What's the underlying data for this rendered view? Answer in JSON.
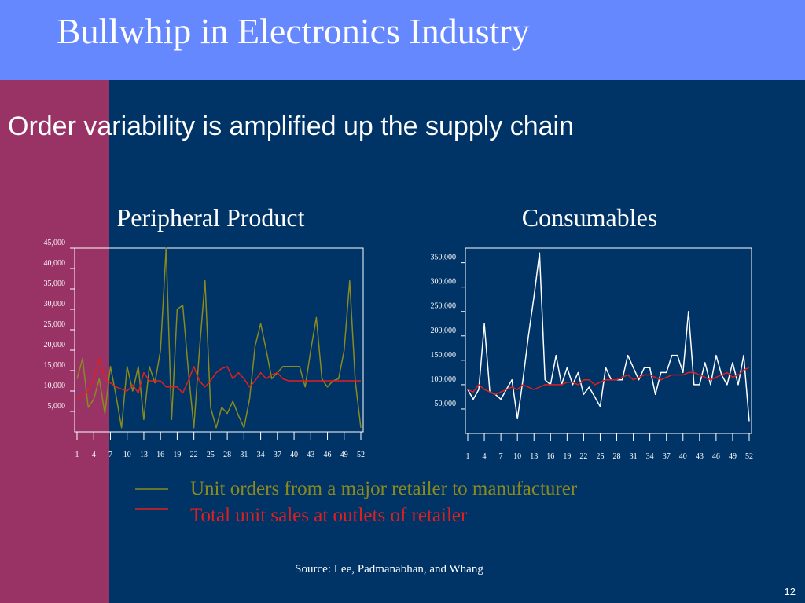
{
  "slide": {
    "title": "Bullwhip in Electronics Industry",
    "subtitle": "Order variability is amplified up the supply chain",
    "source": "Source:  Lee, Padmanabhan, and Whang",
    "page_number": "12"
  },
  "chart_data": [
    {
      "type": "line",
      "title": "Peripheral Product",
      "x": [
        1,
        2,
        3,
        4,
        5,
        6,
        7,
        8,
        9,
        10,
        11,
        12,
        13,
        14,
        15,
        16,
        17,
        18,
        19,
        20,
        21,
        22,
        23,
        24,
        25,
        26,
        27,
        28,
        29,
        30,
        31,
        32,
        33,
        34,
        35,
        36,
        37,
        38,
        39,
        40,
        41,
        42,
        43,
        44,
        45,
        46,
        47,
        48,
        49,
        50,
        51,
        52
      ],
      "xlim": [
        1,
        52
      ],
      "xticks": [
        1,
        4,
        7,
        10,
        13,
        16,
        19,
        22,
        25,
        28,
        31,
        34,
        37,
        40,
        43,
        46,
        49,
        52
      ],
      "ylim": [
        0,
        45000
      ],
      "yticks": [
        {
          "value": 5000,
          "label": "5,000"
        },
        {
          "value": 10000,
          "label": "10,000"
        },
        {
          "value": 15000,
          "label": "15,000"
        },
        {
          "value": 20000,
          "label": "20,000"
        },
        {
          "value": 25000,
          "label": "25,000"
        },
        {
          "value": 30000,
          "label": "30,000"
        },
        {
          "value": 35000,
          "label": "35,000"
        },
        {
          "value": 40000,
          "label": "40,000"
        },
        {
          "value": 45000,
          "label": "45,000"
        }
      ],
      "series": [
        {
          "name": "Unit orders from a major retailer to manufacturer",
          "color": "#8a8a1e",
          "values": [
            13000,
            18000,
            6000,
            8000,
            13000,
            4500,
            16000,
            9000,
            1000,
            16000,
            10000,
            16000,
            3000,
            16000,
            12000,
            20000,
            45000,
            3000,
            30000,
            31000,
            15000,
            1000,
            20000,
            37000,
            6000,
            1000,
            6000,
            4500,
            7500,
            4000,
            1000,
            8000,
            21000,
            26500,
            20000,
            13000,
            14500,
            16000,
            16000,
            16000,
            16000,
            11000,
            20000,
            28000,
            13000,
            11000,
            12500,
            13000,
            20000,
            37000,
            12500,
            1000
          ]
        },
        {
          "name": "Total unit sales at outlets of retailer",
          "color": "#e0201f",
          "values": [
            8000,
            9000,
            10000,
            13000,
            18000,
            13000,
            12000,
            11000,
            10500,
            10000,
            11500,
            9500,
            14500,
            12500,
            12500,
            12500,
            11000,
            11000,
            11000,
            9500,
            12500,
            16000,
            12500,
            11000,
            12500,
            14500,
            15500,
            16000,
            13000,
            14500,
            13000,
            11000,
            12500,
            14500,
            13000,
            14000,
            14500,
            13000,
            12500,
            12500,
            12500,
            12500,
            12500,
            12500,
            12500,
            12500,
            12500,
            12500,
            12500,
            12500,
            12500,
            12500
          ]
        }
      ]
    },
    {
      "type": "line",
      "title": "Consumables",
      "x": [
        1,
        2,
        3,
        4,
        5,
        6,
        7,
        8,
        9,
        10,
        11,
        12,
        13,
        14,
        15,
        16,
        17,
        18,
        19,
        20,
        21,
        22,
        23,
        24,
        25,
        26,
        27,
        28,
        29,
        30,
        31,
        32,
        33,
        34,
        35,
        36,
        37,
        38,
        39,
        40,
        41,
        42,
        43,
        44,
        45,
        46,
        47,
        48,
        49,
        50,
        51,
        52
      ],
      "xlim": [
        1,
        52
      ],
      "xticks": [
        1,
        4,
        7,
        10,
        13,
        16,
        19,
        22,
        25,
        28,
        31,
        34,
        37,
        40,
        43,
        46,
        49,
        52
      ],
      "ylim": [
        0,
        380000
      ],
      "yticks": [
        {
          "value": 50000,
          "label": "50,000"
        },
        {
          "value": 100000,
          "label": "100,000"
        },
        {
          "value": 150000,
          "label": "150,000"
        },
        {
          "value": 200000,
          "label": "200,000"
        },
        {
          "value": 250000,
          "label": "250,000"
        },
        {
          "value": 300000,
          "label": "300,000"
        },
        {
          "value": 350000,
          "label": "350,000"
        }
      ],
      "series": [
        {
          "color": "#ffffff",
          "values": [
            90000,
            70000,
            90000,
            225000,
            85000,
            80000,
            70000,
            90000,
            110000,
            30000,
            110000,
            200000,
            280000,
            370000,
            110000,
            100000,
            160000,
            100000,
            135000,
            100000,
            125000,
            80000,
            95000,
            75000,
            55000,
            135000,
            110000,
            110000,
            110000,
            160000,
            135000,
            110000,
            135000,
            135000,
            80000,
            125000,
            125000,
            160000,
            160000,
            125000,
            250000,
            100000,
            100000,
            145000,
            100000,
            160000,
            120000,
            100000,
            145000,
            100000,
            160000,
            25000
          ]
        },
        {
          "color": "#e0201f",
          "values": [
            90000,
            85000,
            100000,
            90000,
            85000,
            80000,
            85000,
            90000,
            95000,
            90000,
            100000,
            95000,
            90000,
            95000,
            100000,
            100000,
            100000,
            100000,
            105000,
            105000,
            100000,
            110000,
            110000,
            100000,
            105000,
            110000,
            110000,
            110000,
            115000,
            120000,
            110000,
            115000,
            120000,
            120000,
            115000,
            110000,
            115000,
            120000,
            120000,
            120000,
            125000,
            125000,
            120000,
            115000,
            110000,
            115000,
            120000,
            125000,
            115000,
            120000,
            130000,
            135000
          ]
        }
      ]
    }
  ]
}
